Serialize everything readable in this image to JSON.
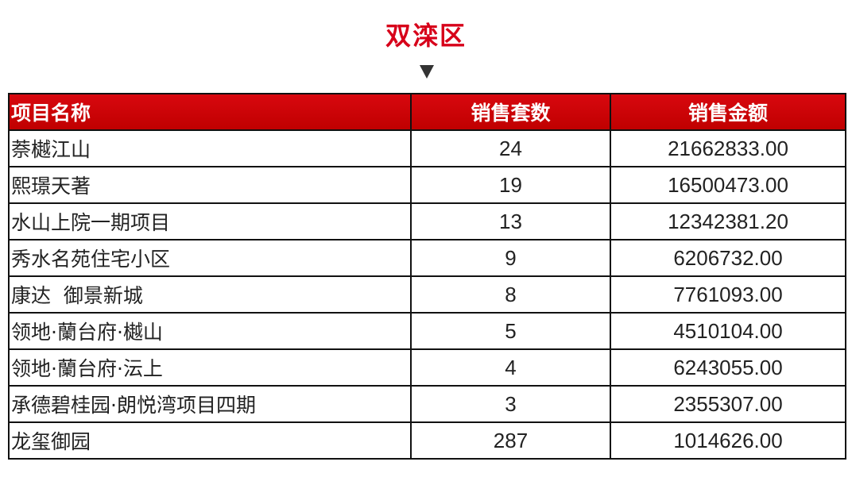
{
  "title": "双滦区",
  "arrow_icon": "triangle-down",
  "colors": {
    "header_bg": "#c00000",
    "title": "#d7001a"
  },
  "table": {
    "headers": [
      "项目名称",
      "销售套数",
      "销售金额"
    ],
    "rows": [
      [
        "萘樾江山",
        "24",
        "21662833.00"
      ],
      [
        "熙璟天著",
        "19",
        "16500473.00"
      ],
      [
        "水山上院一期项目",
        "13",
        "12342381.20"
      ],
      [
        "秀水名苑住宅小区",
        "9",
        "6206732.00"
      ],
      [
        "康达  御景新城",
        "8",
        "7761093.00"
      ],
      [
        "领地·蘭台府·樾山",
        "5",
        "4510104.00"
      ],
      [
        "领地·蘭台府·沄上",
        "4",
        "6243055.00"
      ],
      [
        "承德碧桂园·朗悦湾项目四期",
        "3",
        "2355307.00"
      ],
      [
        "龙玺御园",
        "287",
        "1014626.00"
      ]
    ]
  }
}
